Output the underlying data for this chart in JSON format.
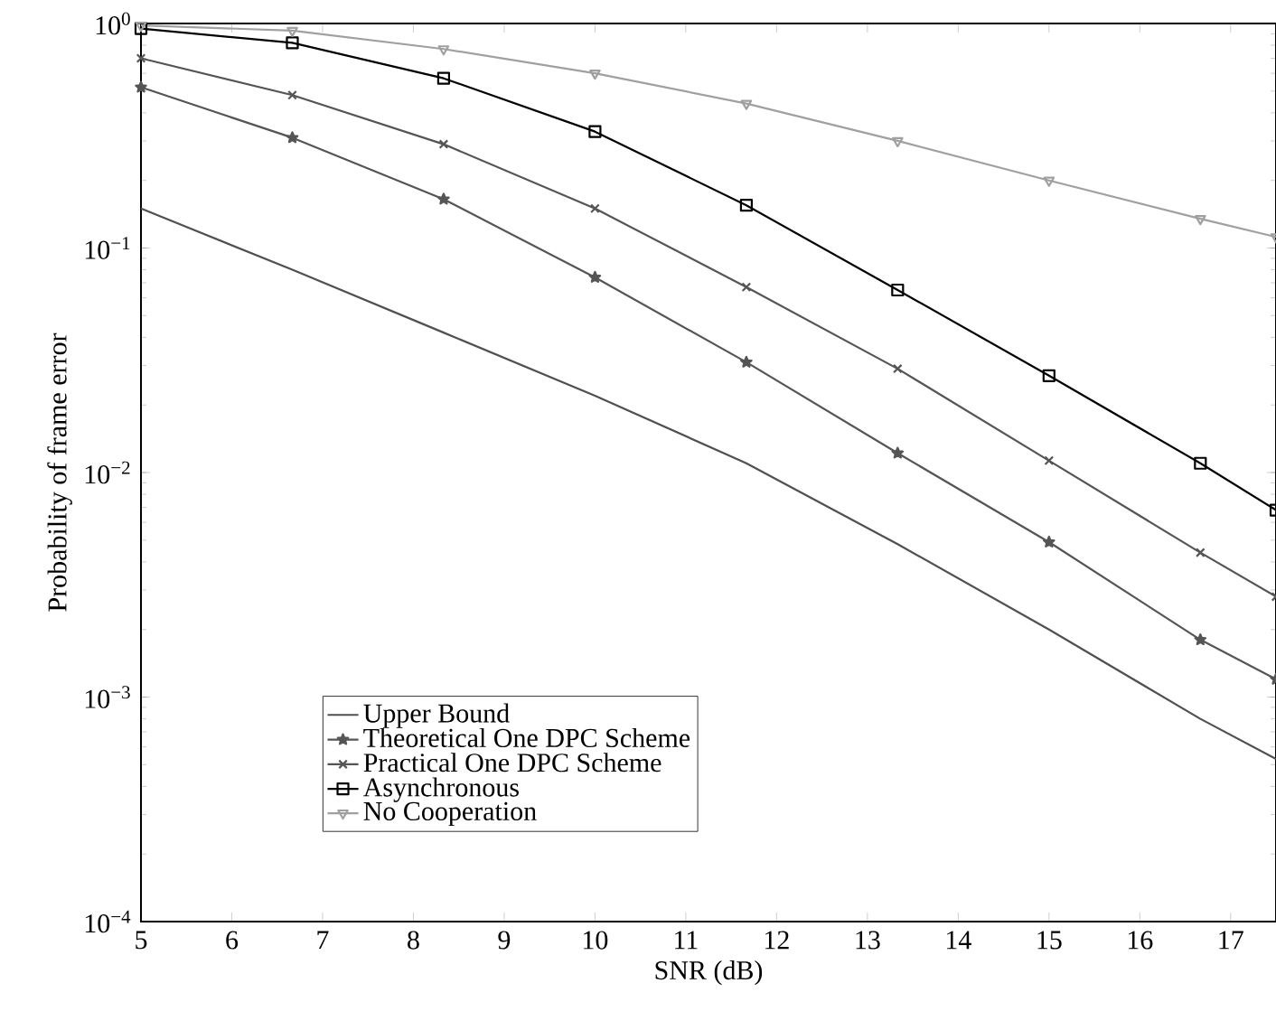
{
  "chart_data": {
    "type": "line",
    "xlabel": "SNR (dB)",
    "ylabel": "Probability of frame error",
    "log": "y",
    "x": [
      5,
      6.667,
      8.333,
      10,
      11.667,
      13.333,
      15,
      16.667,
      17.5
    ],
    "xlim": [
      5,
      17.5
    ],
    "xticks": [
      5,
      6,
      7,
      8,
      9,
      10,
      11,
      12,
      13,
      14,
      15,
      16,
      17
    ],
    "ylim": [
      0.0001,
      1
    ],
    "yticks": [
      {
        "value": 0.0001,
        "label": "10$^{−4}$"
      },
      {
        "value": 0.001,
        "label": "10$^{−3}$"
      },
      {
        "value": 0.01,
        "label": "10$^{−2}$"
      },
      {
        "value": 0.1,
        "label": "10$^{−1}$"
      },
      {
        "value": 1,
        "label": "10$^{0}$"
      }
    ],
    "grid": false,
    "legend": "bottom left",
    "series": [
      {
        "name": "Upper Bound",
        "color": "#505050",
        "marker": "none",
        "values": [
          0.15,
          0.08,
          0.042,
          0.022,
          0.011,
          0.0048,
          0.002,
          0.0008,
          0.00053
        ]
      },
      {
        "name": "Theoretical One DPC Scheme",
        "color": "#555555",
        "marker": "star",
        "values": [
          0.52,
          0.31,
          0.165,
          0.074,
          0.031,
          0.0122,
          0.0049,
          0.0018,
          0.0012
        ]
      },
      {
        "name": "Practical One DPC Scheme",
        "color": "#555555",
        "marker": "cross",
        "values": [
          0.7,
          0.48,
          0.29,
          0.15,
          0.067,
          0.029,
          0.0113,
          0.0044,
          0.0028
        ]
      },
      {
        "name": "Asynchronous",
        "color": "#000000",
        "marker": "square",
        "values": [
          0.95,
          0.82,
          0.57,
          0.33,
          0.155,
          0.065,
          0.027,
          0.011,
          0.0068
        ]
      },
      {
        "name": "No Cooperation",
        "color": "#a0a0a0",
        "marker": "triangle",
        "values": [
          0.98,
          0.93,
          0.77,
          0.6,
          0.44,
          0.3,
          0.2,
          0.135,
          0.112
        ]
      }
    ]
  }
}
